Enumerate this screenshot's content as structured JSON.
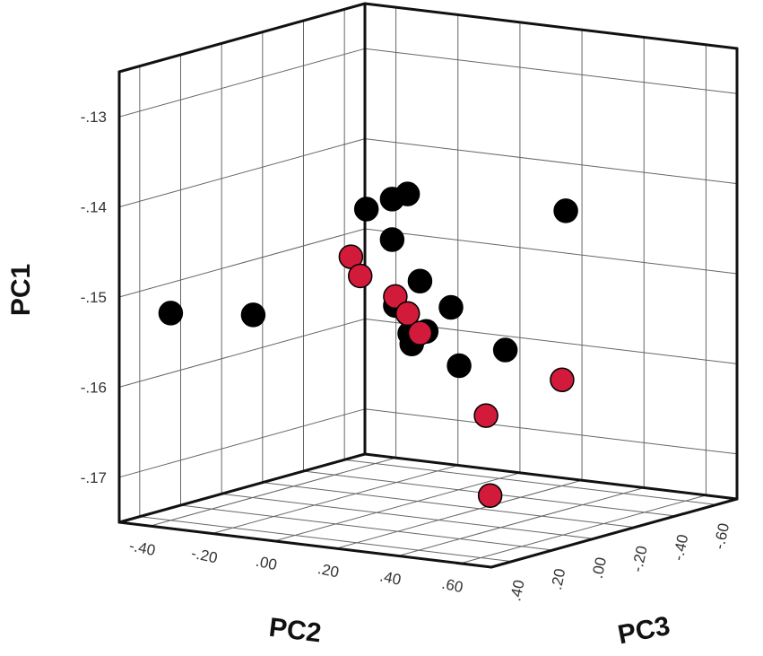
{
  "chart_data": {
    "type": "scatter",
    "projection": "3d",
    "axes": {
      "pc1": {
        "label": "PC1",
        "ticks": [
          "-.13",
          "-.14",
          "-.15",
          "-.16",
          "-.17"
        ]
      },
      "pc2": {
        "label": "PC2",
        "ticks": [
          "-.40",
          "-.20",
          ".00",
          ".20",
          ".40",
          ".60"
        ]
      },
      "pc3": {
        "label": "PC3",
        "ticks": [
          ".40",
          ".20",
          ".00",
          "-.20",
          "-.40",
          "-.60"
        ]
      }
    },
    "colors": {
      "group_a": "#000000",
      "group_b": "#d21a3a"
    },
    "series": [
      {
        "color": "#000000",
        "points": [
          {
            "pc2": -0.4,
            "pc3": 0.4,
            "pc1": -0.152
          },
          {
            "pc2": -0.2,
            "pc3": 0.3,
            "pc1": -0.152
          },
          {
            "pc2": 0.0,
            "pc3": 0.05,
            "pc1": -0.141
          },
          {
            "pc2": 0.05,
            "pc3": 0.0,
            "pc1": -0.14
          },
          {
            "pc2": 0.08,
            "pc3": -0.03,
            "pc1": -0.1395
          },
          {
            "pc2": 0.05,
            "pc3": 0.0,
            "pc1": -0.1445
          },
          {
            "pc2": 0.12,
            "pc3": -0.03,
            "pc1": -0.149
          },
          {
            "pc2": 0.22,
            "pc3": -0.03,
            "pc1": -0.1515
          },
          {
            "pc2": 0.08,
            "pc3": 0.03,
            "pc1": -0.1515
          },
          {
            "pc2": 0.1,
            "pc3": 0.0,
            "pc1": -0.1525
          },
          {
            "pc2": 0.12,
            "pc3": 0.02,
            "pc1": -0.1545
          },
          {
            "pc2": 0.14,
            "pc3": -0.03,
            "pc1": -0.1545
          },
          {
            "pc2": 0.1,
            "pc3": -0.02,
            "pc1": -0.156
          },
          {
            "pc2": 0.2,
            "pc3": -0.1,
            "pc1": -0.1585
          },
          {
            "pc2": 0.25,
            "pc3": -0.25,
            "pc1": -0.1575
          },
          {
            "pc2": 0.28,
            "pc3": -0.5,
            "pc1": -0.1435
          }
        ]
      },
      {
        "color": "#d21a3a",
        "points": [
          {
            "pc2": -0.05,
            "pc3": 0.05,
            "pc1": -0.1465
          },
          {
            "pc2": -0.02,
            "pc3": 0.05,
            "pc1": -0.1485
          },
          {
            "pc2": 0.08,
            "pc3": 0.03,
            "pc1": -0.1505
          },
          {
            "pc2": 0.1,
            "pc3": 0.0,
            "pc1": -0.1525
          },
          {
            "pc2": 0.14,
            "pc3": 0.0,
            "pc1": -0.1545
          },
          {
            "pc2": 0.3,
            "pc3": -0.08,
            "pc1": -0.1635
          },
          {
            "pc2": 0.4,
            "pc3": -0.3,
            "pc1": -0.1605
          },
          {
            "pc2": 0.3,
            "pc3": -0.1,
            "pc1": -0.1725
          }
        ]
      }
    ]
  }
}
